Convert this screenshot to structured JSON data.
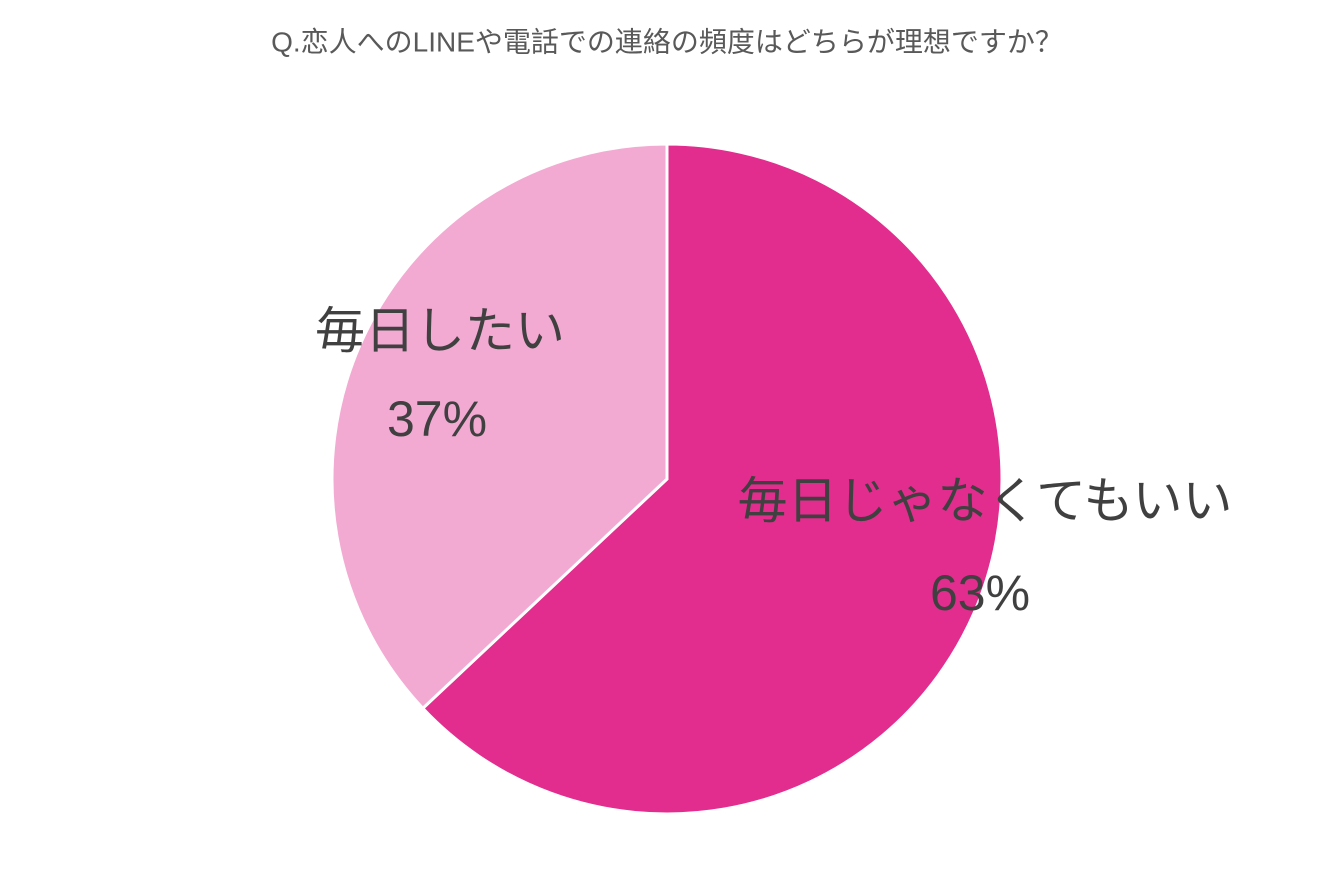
{
  "chart_data": {
    "type": "pie",
    "title": "Q.恋人へのLINEや電話での連絡の頻度はどちらが理想ですか？",
    "categories": [
      "毎日じゃなくてもいい",
      "毎日したい"
    ],
    "values": [
      63,
      37
    ],
    "value_labels": [
      "63%",
      "37%"
    ],
    "colors": [
      "#e22d8e",
      "#f2aad2"
    ]
  }
}
